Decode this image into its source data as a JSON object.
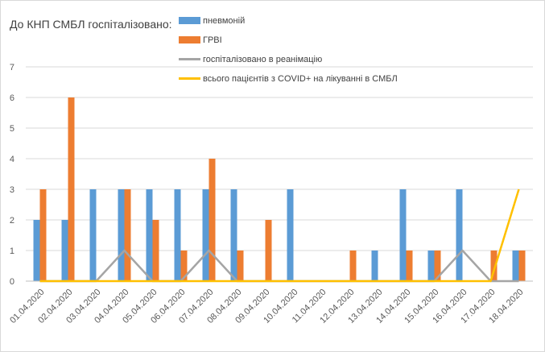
{
  "chart_data": {
    "type": "bar",
    "title": "До КНП СМБЛ госпіталізовано:",
    "xlabel": "",
    "ylabel": "",
    "ylim": [
      0,
      7
    ],
    "yticks": [
      0,
      1,
      2,
      3,
      4,
      5,
      6,
      7
    ],
    "grid": true,
    "legend_position": "top",
    "categories": [
      "01.04.2020",
      "02.04.2020",
      "03.04.2020",
      "04.04.2020",
      "05.04.2020",
      "06.04.2020",
      "07.04.2020",
      "08.04.2020",
      "09.04.2020",
      "10.04.2020",
      "11.04.2020",
      "12.04.2020",
      "13.04.2020",
      "14.04.2020",
      "15.04.2020",
      "16.04.2020",
      "17.04.2020",
      "18.04.2020"
    ],
    "series": [
      {
        "name": "пневмоній",
        "type": "bar",
        "color": "#5b9bd5",
        "values": [
          2,
          2,
          3,
          3,
          3,
          3,
          3,
          3,
          0,
          3,
          0,
          0,
          1,
          3,
          1,
          3,
          0,
          1
        ]
      },
      {
        "name": "ГРВІ",
        "type": "bar",
        "color": "#ed7d31",
        "values": [
          3,
          6,
          0,
          3,
          2,
          1,
          4,
          1,
          2,
          0,
          0,
          1,
          0,
          1,
          1,
          0,
          1,
          1
        ]
      },
      {
        "name": "госпіталізовано в реанімацію",
        "type": "line",
        "color": "#a5a5a5",
        "values": [
          0,
          0,
          0,
          1,
          0,
          0,
          1,
          0,
          0,
          0,
          0,
          0,
          0,
          0,
          0,
          1,
          0,
          0
        ]
      },
      {
        "name": "всього пацієнтів з COVID+ на лікуванні в СМБЛ",
        "type": "line",
        "color": "#ffc000",
        "values": [
          0,
          0,
          0,
          0,
          0,
          0,
          0,
          0,
          0,
          0,
          0,
          0,
          0,
          0,
          0,
          0,
          0,
          3
        ]
      }
    ]
  }
}
